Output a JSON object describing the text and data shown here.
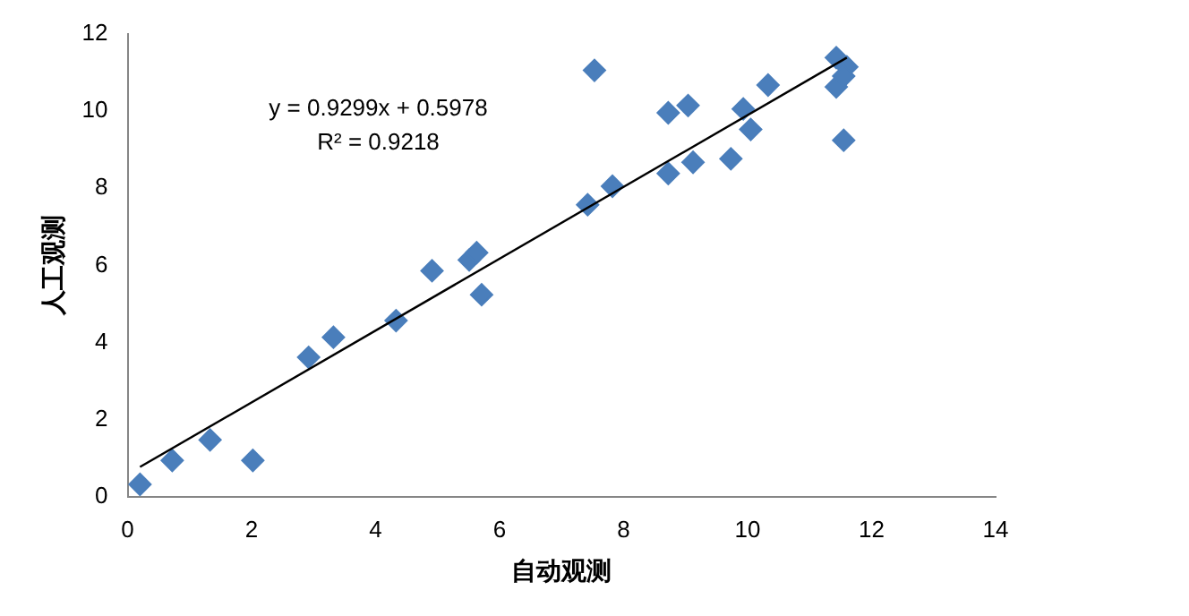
{
  "chart_data": {
    "type": "scatter",
    "xlabel": "自动观测",
    "ylabel": "人工观测",
    "xlim": [
      0,
      14
    ],
    "xticks": [
      0,
      2,
      4,
      6,
      8,
      10,
      12,
      14
    ],
    "ylim": [
      0,
      12
    ],
    "yticks": [
      0,
      2,
      4,
      6,
      8,
      10,
      12
    ],
    "grid": false,
    "legend": false,
    "marker": "diamond",
    "annotations": [
      "y = 0.9299x + 0.5978",
      "R² = 0.9218"
    ],
    "series": [
      {
        "color": "#4a7ebb",
        "x": [
          0.2,
          0.72,
          1.33,
          2.02,
          2.92,
          3.32,
          4.33,
          4.91,
          5.51,
          5.63,
          5.71,
          7.42,
          7.82,
          7.53,
          8.72,
          8.72,
          9.04,
          9.12,
          9.73,
          9.93,
          10.05,
          10.33,
          11.43,
          11.6,
          11.43,
          11.55,
          11.55
        ],
        "values": [
          0.33,
          0.95,
          1.48,
          0.95,
          3.62,
          4.14,
          4.57,
          5.86,
          6.14,
          6.33,
          5.24,
          7.57,
          8.05,
          11.05,
          8.38,
          9.95,
          10.14,
          8.67,
          8.76,
          10.05,
          9.52,
          10.67,
          11.38,
          11.14,
          10.62,
          9.24,
          10.9
        ]
      },
      {
        "type": "line",
        "color": "#000000",
        "marker": "none",
        "x": [
          0.2,
          11.6
        ],
        "values": [
          0.78,
          11.38
        ]
      }
    ]
  }
}
